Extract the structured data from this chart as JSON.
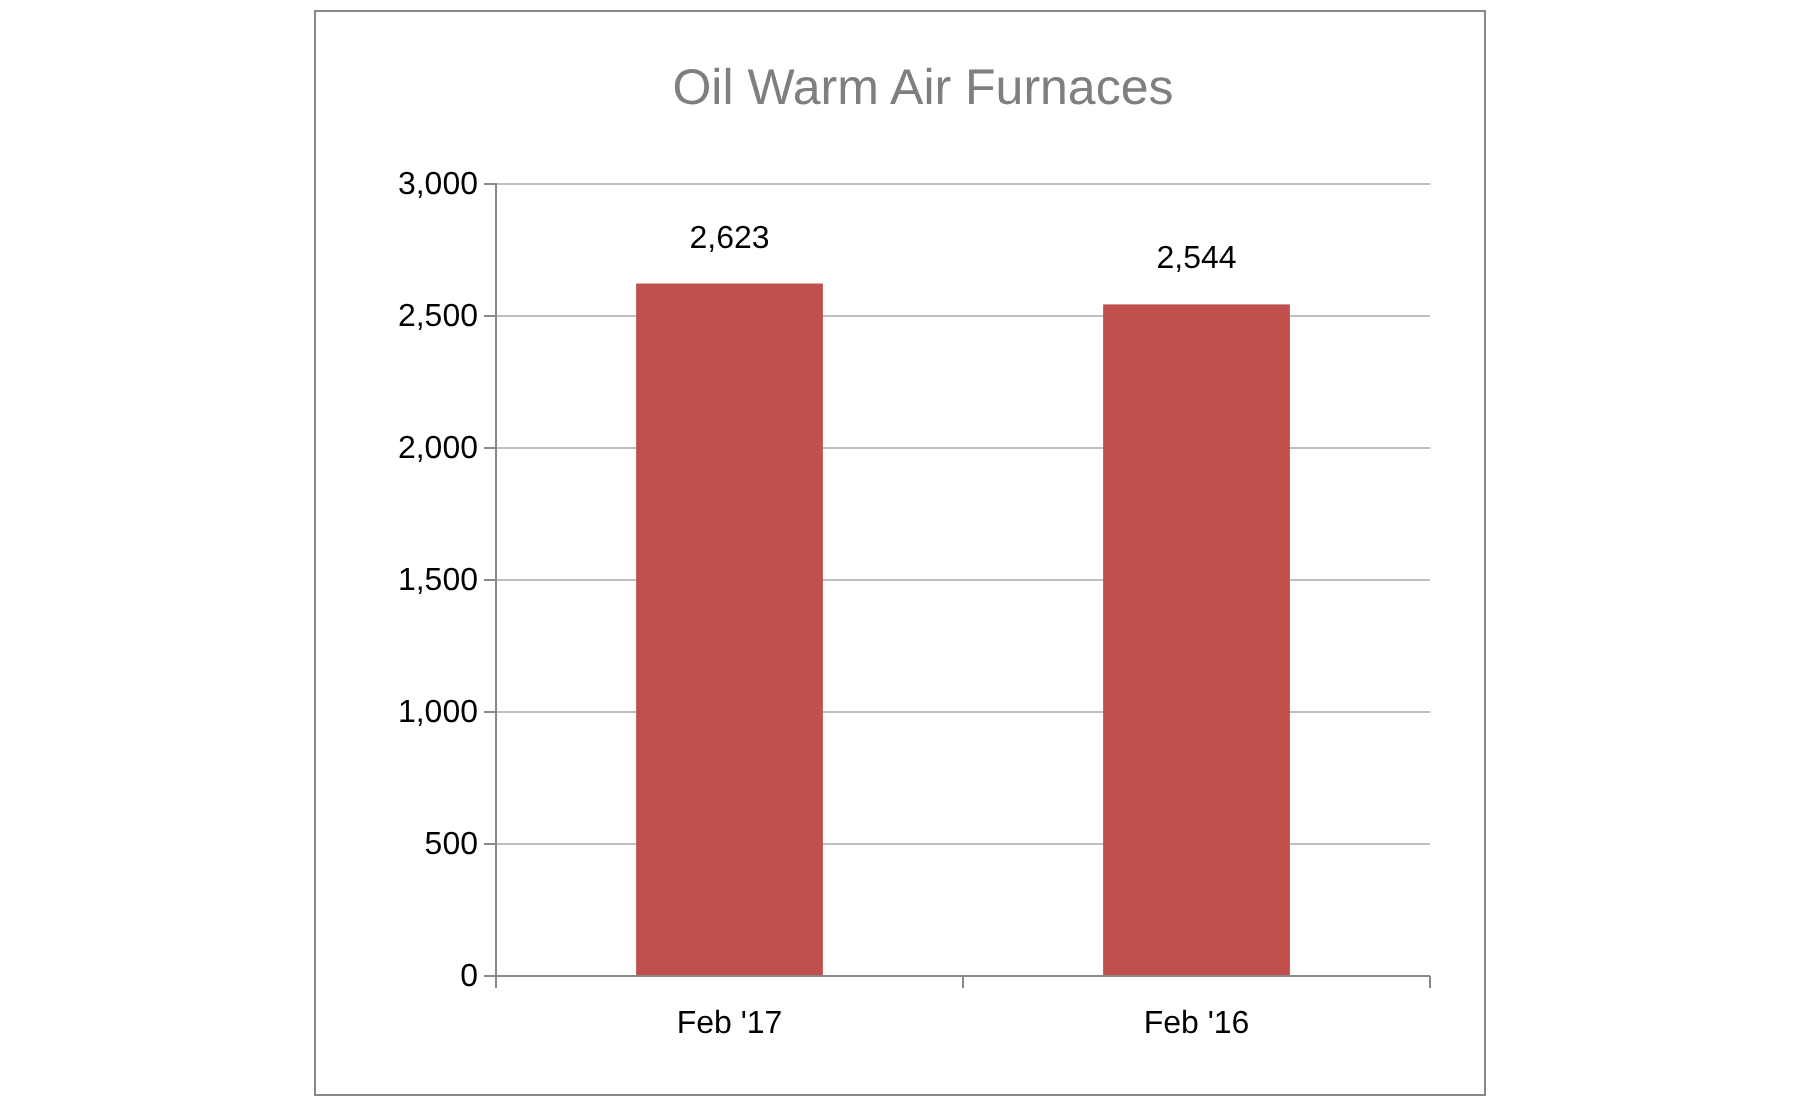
{
  "chart_data": {
    "type": "bar",
    "title": "Oil Warm Air Furnaces",
    "categories": [
      "Feb '17",
      "Feb '16"
    ],
    "values": [
      2623,
      2544
    ],
    "color": "#c0504d",
    "ylim": [
      0,
      3000
    ],
    "yticks": [
      {
        "value": 0,
        "label": "0"
      },
      {
        "value": 500,
        "label": "500"
      },
      {
        "value": 1000,
        "label": "1,000"
      },
      {
        "value": 1500,
        "label": "1,500"
      },
      {
        "value": 2000,
        "label": "2,000"
      },
      {
        "value": 2500,
        "label": "2,500"
      },
      {
        "value": 3000,
        "label": "3,000"
      }
    ],
    "grid": "y",
    "value_labels": [
      "2,623",
      "2,544"
    ]
  }
}
